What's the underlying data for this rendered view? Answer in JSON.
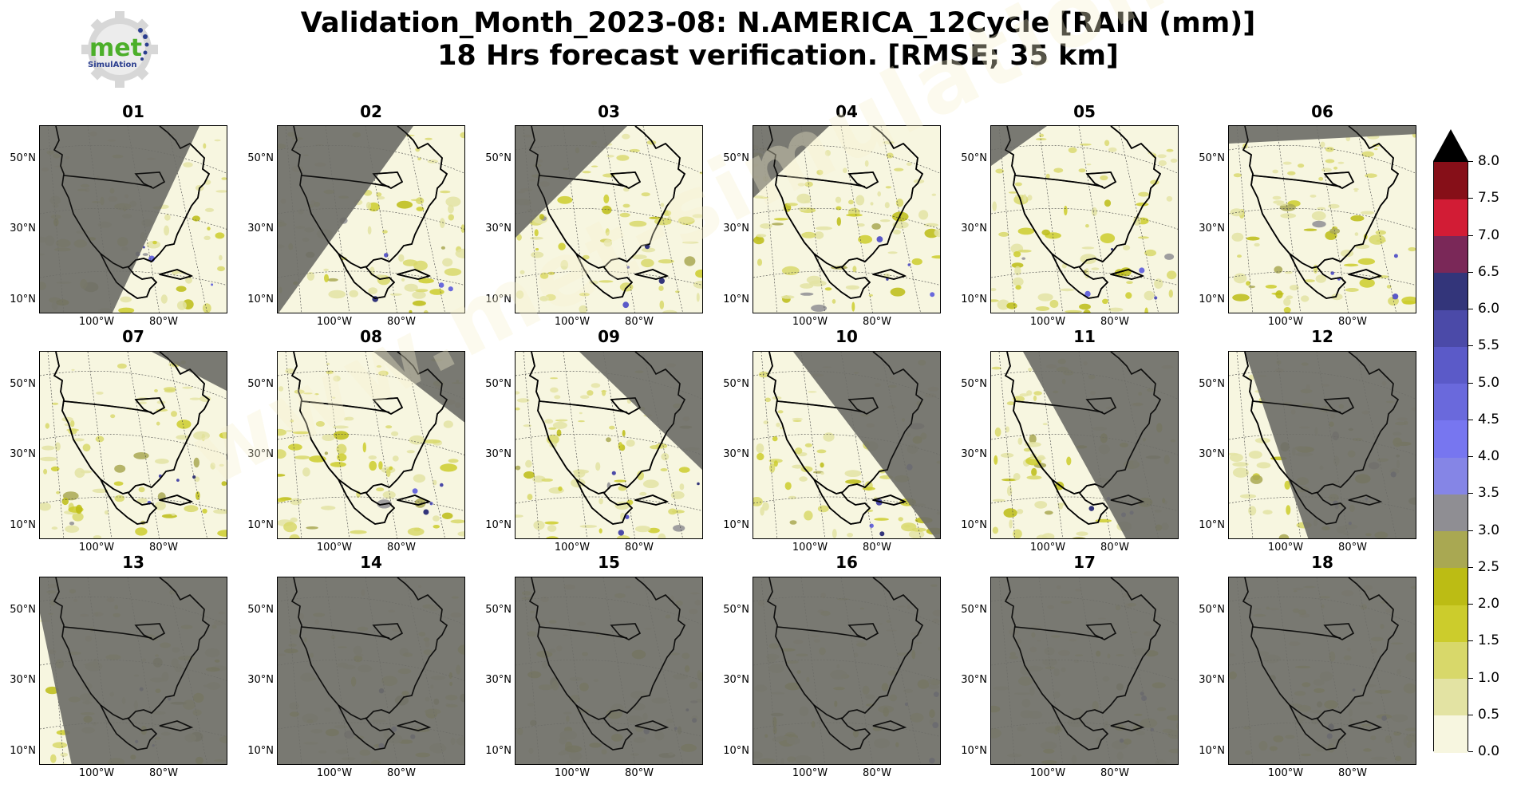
{
  "header": {
    "title_line1": "Validation_Month_2023-08: N.AMERICA_12Cycle [RAIN (mm)]",
    "title_line2": "18 Hrs forecast verification.  [RMSE; 35 km]"
  },
  "logo": {
    "text": "met",
    "subtext": "SimulAtion"
  },
  "watermark": "www.met-simulation.com",
  "chart_data": {
    "type": "heatmap",
    "panels": [
      "01",
      "02",
      "03",
      "04",
      "05",
      "06",
      "07",
      "08",
      "09",
      "10",
      "11",
      "12",
      "13",
      "14",
      "15",
      "16",
      "17",
      "18"
    ],
    "lat_ticks": [
      "50°N",
      "30°N",
      "10°N"
    ],
    "lon_ticks": [
      "100°W",
      "80°W"
    ],
    "colorbar": {
      "ticks": [
        "8.0",
        "7.5",
        "7.0",
        "6.5",
        "6.0",
        "5.5",
        "5.0",
        "4.5",
        "4.0",
        "3.5",
        "3.0",
        "2.5",
        "2.0",
        "1.5",
        "1.0",
        "0.5",
        "0.0"
      ],
      "levels": [
        0,
        0.5,
        1,
        1.5,
        2,
        2.5,
        3,
        3.5,
        4,
        4.5,
        5,
        5.5,
        6,
        6.5,
        7,
        7.5,
        8
      ],
      "colors": [
        "#f7f6e0",
        "#e3e3a3",
        "#d8d86a",
        "#cccc2c",
        "#bcbc14",
        "#a9a852",
        "#8f8e93",
        "#8585e6",
        "#7776f0",
        "#6a69dc",
        "#5b5ac8",
        "#4b4aa8",
        "#33357a",
        "#7a2858",
        "#d21c35",
        "#860f18"
      ],
      "extend": "max"
    },
    "night_fraction_note": "",
    "colors": {
      "night_overlay": "#6e6e68",
      "background_rain": "#f7f6e0",
      "coast": "#000000"
    }
  }
}
